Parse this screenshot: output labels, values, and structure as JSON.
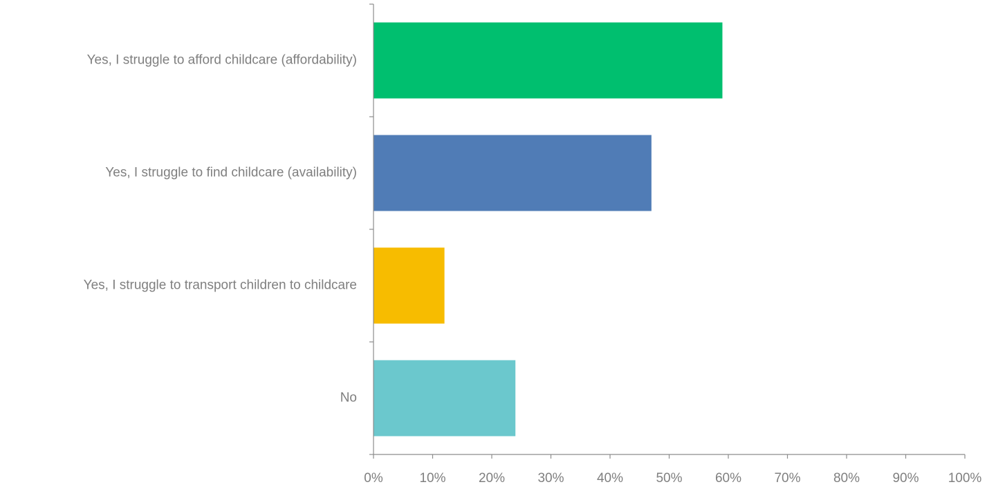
{
  "chart_data": {
    "type": "bar",
    "orientation": "horizontal",
    "title": "",
    "xlabel": "",
    "ylabel": "",
    "categories": [
      "Yes, I struggle to afford childcare (affordability)",
      "Yes, I struggle to find childcare (availability)",
      "Yes, I struggle to transport children to childcare",
      "No"
    ],
    "values": [
      59,
      47,
      12,
      24
    ],
    "colors": [
      "#00bf6f",
      "#507cb6",
      "#f7bc00",
      "#6bc8cd"
    ],
    "xlim": [
      0,
      100
    ],
    "x_ticks": [
      "0%",
      "10%",
      "20%",
      "30%",
      "40%",
      "50%",
      "60%",
      "70%",
      "80%",
      "90%",
      "100%"
    ],
    "grid": false,
    "legend": "none"
  }
}
